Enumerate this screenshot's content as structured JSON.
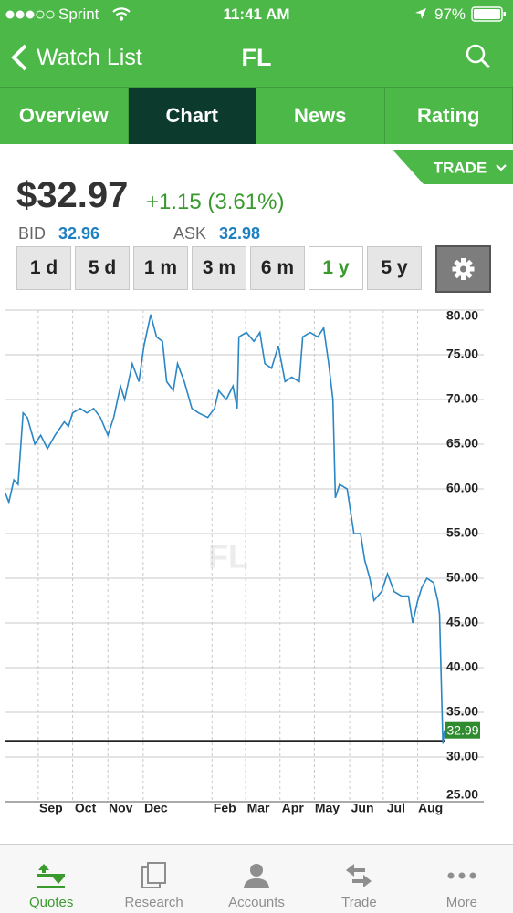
{
  "status_bar": {
    "carrier": "Sprint",
    "time": "11:41 AM",
    "battery": "97%"
  },
  "nav": {
    "back": "Watch List",
    "title": "FL"
  },
  "tabs": [
    "Overview",
    "Chart",
    "News",
    "Rating"
  ],
  "selected_tab": 1,
  "trade_button": "TRADE",
  "quote": {
    "price": "$32.97",
    "change": "+1.15 (3.61%)",
    "bid_label": "BID",
    "bid": "32.96",
    "ask_label": "ASK",
    "ask": "32.98"
  },
  "ranges": [
    "1 d",
    "5 d",
    "1 m",
    "3 m",
    "6 m",
    "1 y",
    "5 y"
  ],
  "selected_range": 5,
  "chart_data": {
    "type": "line",
    "watermark": "FL",
    "color": "#2a86c5",
    "x": [
      0,
      0.4,
      1,
      1.5,
      2.1,
      2.6,
      3.5,
      4.2,
      5,
      5.9,
      7,
      7.5,
      8,
      8.9,
      9.7,
      10.5,
      11.3,
      12.2,
      12.9,
      13.7,
      14.2,
      15.1,
      15.9,
      16.5,
      17.3,
      18,
      18.7,
      19.2,
      20,
      20.5,
      21.3,
      22.2,
      23,
      24.1,
      24.9,
      25.4,
      26.3,
      27.1,
      27.6,
      27.8,
      28.7,
      29.6,
      30.3,
      30.9,
      31.7,
      32.5,
      33.3,
      34.1,
      35,
      35.4,
      36.3,
      37.2,
      37.9,
      38.5,
      39,
      39.3,
      39.8,
      40.7,
      41.5,
      42.3,
      42.8,
      43.4,
      43.9,
      44.8,
      45.5,
      46.3,
      47.2,
      48,
      48.5,
      49.1,
      49.6,
      50.2,
      51,
      51.5,
      51.7,
      52.1,
      52.3
    ],
    "values": [
      59.5,
      58.5,
      61,
      60.5,
      68.5,
      68,
      65,
      66,
      64.5,
      66,
      67.5,
      67,
      68.5,
      69,
      68.5,
      69,
      68,
      66,
      68,
      71.5,
      70,
      74,
      72,
      76,
      79.5,
      77,
      76.5,
      72,
      71,
      74,
      72,
      69,
      68.5,
      68,
      69,
      71,
      70,
      71.5,
      69,
      77,
      77.5,
      76.5,
      77.5,
      74,
      73.5,
      76,
      72,
      72.5,
      72,
      77,
      77.5,
      77,
      78,
      74,
      70,
      59,
      60.5,
      60,
      55,
      55,
      52,
      50,
      47.5,
      48.5,
      50.5,
      48.5,
      48,
      48,
      45,
      47.5,
      49,
      50,
      49.5,
      47.5,
      46,
      31.5,
      32.99
    ],
    "last_value": 32.99,
    "reference_line": 31.82,
    "xlim": [
      0,
      52.3
    ],
    "ylim": [
      25,
      80
    ],
    "xticks": [
      {
        "value": 3.9,
        "label": "Sep"
      },
      {
        "value": 8,
        "label": "Oct"
      },
      {
        "value": 12.2,
        "label": "Nov"
      },
      {
        "value": 16.4,
        "label": "Dec"
      },
      {
        "value": 24.6,
        "label": "Feb"
      },
      {
        "value": 28.6,
        "label": "Mar"
      },
      {
        "value": 32.7,
        "label": "Apr"
      },
      {
        "value": 36.8,
        "label": "May"
      },
      {
        "value": 41,
        "label": "Jun"
      },
      {
        "value": 45,
        "label": "Jul"
      },
      {
        "value": 49.1,
        "label": "Aug"
      }
    ],
    "yticks": [
      {
        "value": 25,
        "label": "25.00"
      },
      {
        "value": 30,
        "label": "30.00"
      },
      {
        "value": 35,
        "label": "35.00"
      },
      {
        "value": 40,
        "label": "40.00"
      },
      {
        "value": 45,
        "label": "45.00"
      },
      {
        "value": 50,
        "label": "50.00"
      },
      {
        "value": 55,
        "label": "55.00"
      },
      {
        "value": 60,
        "label": "60.00"
      },
      {
        "value": 65,
        "label": "65.00"
      },
      {
        "value": 70,
        "label": "70.00"
      },
      {
        "value": 75,
        "label": "75.00"
      },
      {
        "value": 80,
        "label": "80.00"
      }
    ],
    "grid": true
  },
  "bottom_tabs": [
    "Quotes",
    "Research",
    "Accounts",
    "Trade",
    "More"
  ],
  "selected_bottom_tab": 0
}
